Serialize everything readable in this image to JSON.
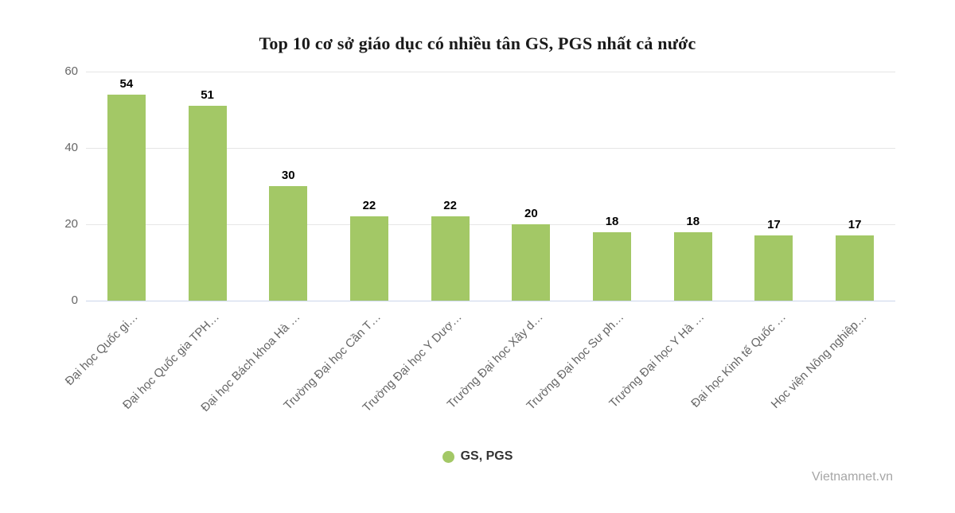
{
  "chart": {
    "title": "Top 10 cơ sở giáo dục có nhiều tân GS, PGS nhất cả nước",
    "legend": {
      "label": "GS, PGS"
    },
    "watermark": "Vietnamnet.vn",
    "colors": {
      "bar": "#a3c866",
      "gridline": "#e6e6e6",
      "axis_line": "#ccd6eb",
      "tick_label": "#666666",
      "data_label": "#000000",
      "title": "#1a1a1a",
      "legend_text": "#333333",
      "watermark": "#a6a6a6"
    }
  },
  "chart_data": {
    "type": "bar",
    "title": "Top 10 cơ sở giáo dục có nhiều tân GS, PGS nhất cả nước",
    "categories": [
      "Đại học Quốc gi…",
      "Đại học Quốc gia TPH…",
      "Đại học Bách khoa Hà …",
      "Trường Đại học Cần T…",
      "Trường Đại học Y Dượ…",
      "Trường Đại học Xây d…",
      "Trường Đại học Sư ph…",
      "Trường Đại học Y Hà …",
      "Đại học Kinh tế Quốc …",
      "Học viện Nông nghiệp…"
    ],
    "series": [
      {
        "name": "GS, PGS",
        "values": [
          54,
          51,
          30,
          22,
          22,
          20,
          18,
          18,
          17,
          17
        ]
      }
    ],
    "xlabel": "",
    "ylabel": "",
    "ylim": [
      0,
      60
    ],
    "yticks": [
      0,
      20,
      40,
      60
    ],
    "grid": true,
    "data_labels": true,
    "legend_position": "bottom-center",
    "x_label_rotation": -45
  }
}
